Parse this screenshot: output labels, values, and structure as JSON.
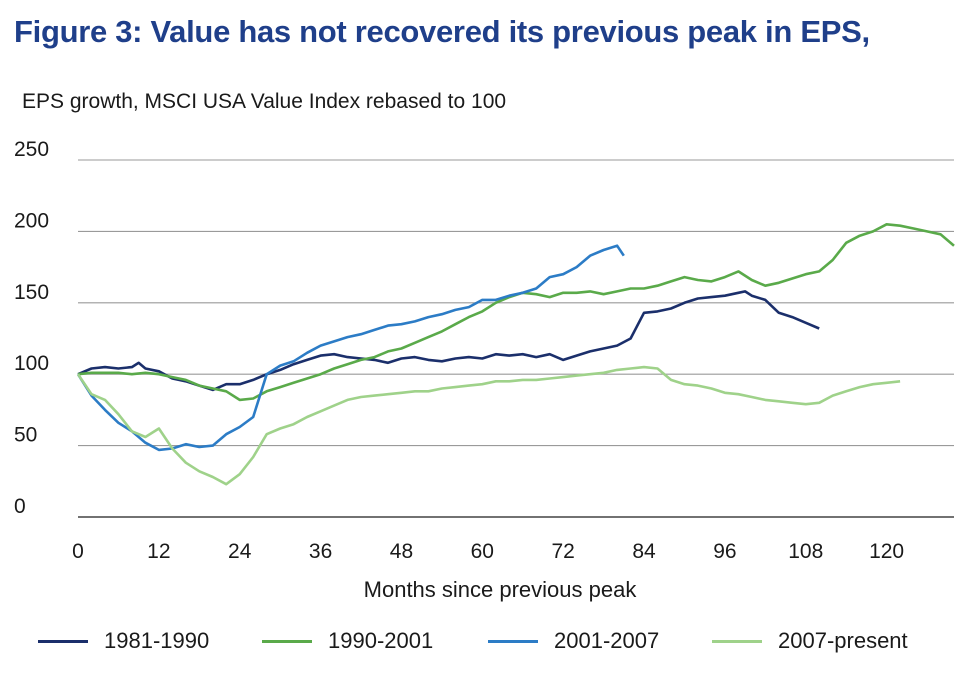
{
  "title": "Figure 3: Value has not recovered its previous peak in EPS,",
  "subtitle": "EPS growth, MSCI USA Value Index rebased to 100",
  "chart_data": {
    "type": "line",
    "xlabel": "Months since previous peak",
    "ylabel": "",
    "xlim": [
      0,
      130
    ],
    "ylim": [
      0,
      250
    ],
    "xticks": [
      0,
      12,
      24,
      36,
      48,
      60,
      72,
      84,
      96,
      108,
      120
    ],
    "yticks": [
      0,
      50,
      100,
      150,
      200,
      250
    ],
    "grid": "horizontal",
    "legend_position": "bottom",
    "series": [
      {
        "name": "1981-1990",
        "color": "#1b2f6b",
        "x": [
          0,
          2,
          4,
          6,
          8,
          9,
          10,
          12,
          14,
          16,
          18,
          20,
          22,
          24,
          26,
          28,
          30,
          32,
          34,
          36,
          38,
          40,
          42,
          44,
          46,
          48,
          50,
          52,
          54,
          56,
          58,
          60,
          62,
          64,
          66,
          68,
          70,
          72,
          74,
          76,
          78,
          80,
          82,
          84,
          86,
          88,
          90,
          92,
          94,
          96,
          98,
          99,
          100,
          102,
          104,
          106,
          108,
          110
        ],
        "y": [
          100,
          104,
          105,
          104,
          105,
          108,
          104,
          102,
          97,
          95,
          92,
          89,
          93,
          93,
          96,
          100,
          103,
          107,
          110,
          113,
          114,
          112,
          111,
          110,
          108,
          111,
          112,
          110,
          109,
          111,
          112,
          111,
          114,
          113,
          114,
          112,
          114,
          110,
          113,
          116,
          118,
          120,
          125,
          143,
          144,
          146,
          150,
          153,
          154,
          155,
          157,
          158,
          155,
          152,
          143,
          140,
          136,
          132
        ]
      },
      {
        "name": "1990-2001",
        "color": "#5aaa4a",
        "x": [
          0,
          2,
          4,
          6,
          8,
          10,
          12,
          14,
          16,
          18,
          20,
          22,
          24,
          26,
          28,
          30,
          32,
          34,
          36,
          38,
          40,
          42,
          44,
          46,
          48,
          50,
          52,
          54,
          56,
          58,
          60,
          62,
          64,
          66,
          68,
          70,
          72,
          74,
          76,
          78,
          80,
          82,
          84,
          86,
          88,
          90,
          92,
          94,
          96,
          98,
          100,
          102,
          104,
          106,
          108,
          110,
          112,
          114,
          116,
          118,
          120,
          122,
          124,
          126,
          128,
          130
        ],
        "y": [
          100,
          101,
          101,
          101,
          100,
          101,
          100,
          98,
          96,
          92,
          90,
          88,
          82,
          83,
          88,
          91,
          94,
          97,
          100,
          104,
          107,
          110,
          112,
          116,
          118,
          122,
          126,
          130,
          135,
          140,
          144,
          150,
          154,
          157,
          156,
          154,
          157,
          157,
          158,
          156,
          158,
          160,
          160,
          162,
          165,
          168,
          166,
          165,
          168,
          172,
          166,
          162,
          164,
          167,
          170,
          172,
          180,
          192,
          197,
          200,
          205,
          204,
          202,
          200,
          198,
          190
        ]
      },
      {
        "name": "2001-2007",
        "color": "#2c7cc6",
        "x": [
          0,
          2,
          4,
          6,
          8,
          10,
          12,
          14,
          16,
          18,
          20,
          22,
          24,
          26,
          28,
          30,
          32,
          34,
          36,
          38,
          40,
          42,
          44,
          46,
          48,
          50,
          52,
          54,
          56,
          58,
          60,
          62,
          64,
          66,
          68,
          70,
          72,
          74,
          76,
          78,
          80,
          81
        ],
        "y": [
          100,
          85,
          75,
          66,
          60,
          52,
          47,
          48,
          51,
          49,
          50,
          58,
          63,
          70,
          100,
          106,
          109,
          115,
          120,
          123,
          126,
          128,
          131,
          134,
          135,
          137,
          140,
          142,
          145,
          147,
          152,
          152,
          155,
          157,
          160,
          168,
          170,
          175,
          183,
          187,
          190,
          183
        ]
      },
      {
        "name": "2007-present",
        "color": "#9fd28a",
        "x": [
          0,
          2,
          4,
          6,
          8,
          10,
          12,
          14,
          16,
          18,
          20,
          22,
          24,
          26,
          28,
          30,
          32,
          34,
          36,
          38,
          40,
          42,
          44,
          46,
          48,
          50,
          52,
          54,
          56,
          58,
          60,
          62,
          64,
          66,
          68,
          70,
          72,
          74,
          76,
          78,
          80,
          82,
          84,
          86,
          88,
          90,
          92,
          94,
          96,
          98,
          100,
          102,
          104,
          106,
          108,
          110,
          112,
          114,
          116,
          118,
          120,
          122
        ],
        "y": [
          100,
          86,
          82,
          72,
          60,
          56,
          62,
          48,
          38,
          32,
          28,
          23,
          30,
          42,
          58,
          62,
          65,
          70,
          74,
          78,
          82,
          84,
          85,
          86,
          87,
          88,
          88,
          90,
          91,
          92,
          93,
          95,
          95,
          96,
          96,
          97,
          98,
          99,
          100,
          101,
          103,
          104,
          105,
          104,
          96,
          93,
          92,
          90,
          87,
          86,
          84,
          82,
          81,
          80,
          79,
          80,
          85,
          88,
          91,
          93,
          94,
          95
        ]
      }
    ]
  }
}
